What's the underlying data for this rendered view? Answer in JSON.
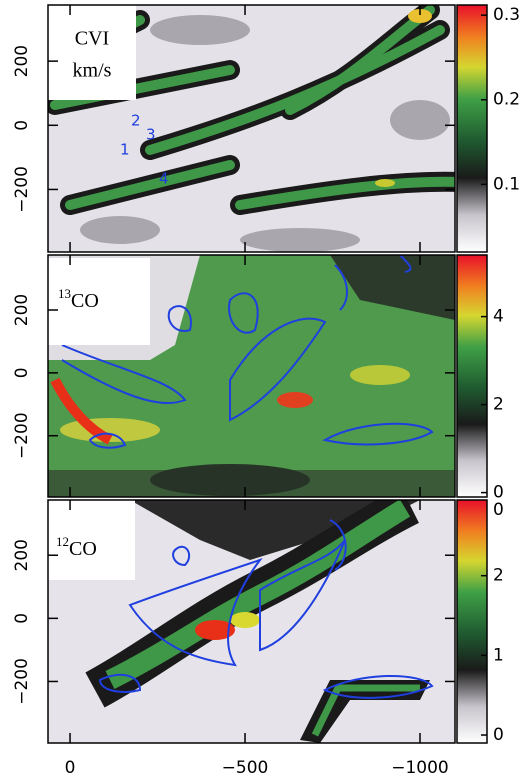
{
  "chart_data": [
    {
      "type": "heatmap",
      "label": "CVI",
      "label_unit": "km/s",
      "annotations": [
        "1",
        "2",
        "3",
        "4"
      ],
      "ylim": [
        -395,
        375
      ],
      "yticks": [
        {
          "value": -200,
          "label": "−200"
        },
        0,
        200
      ],
      "clim": [
        0.02,
        0.312
      ],
      "cticks": [
        0.1,
        0.2,
        0.3
      ]
    },
    {
      "type": "heatmap",
      "label_sup": "13",
      "label": "CO",
      "ylim": [
        -395,
        375
      ],
      "yticks": [
        {
          "value": -200,
          "label": "−200"
        },
        0,
        200
      ],
      "clim": [
        -0.1,
        5.4
      ],
      "cticks": [
        0,
        2,
        4
      ]
    },
    {
      "type": "heatmap",
      "label_sup": "12",
      "label": "CO",
      "ylim": [
        -395,
        375
      ],
      "yticks": [
        {
          "value": -200,
          "label": "−200"
        },
        0,
        200
      ],
      "clim": [
        -0.1,
        2.95
      ],
      "cticks": [
        0,
        1,
        2
      ],
      "colorbar_top_text": "0",
      "xlim": [
        63,
        -1100
      ],
      "xticks": [
        0,
        {
          "value": -500,
          "label": "−500"
        },
        {
          "value": -1000,
          "label": "−1000"
        }
      ]
    }
  ]
}
